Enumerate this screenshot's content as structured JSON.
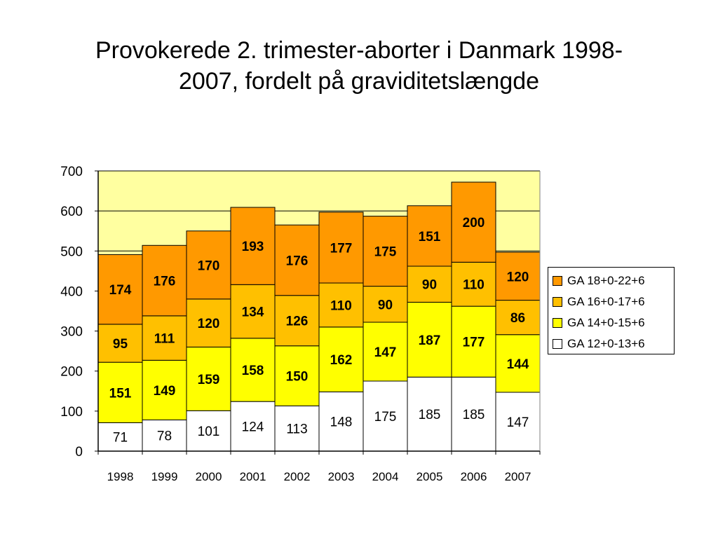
{
  "title_line1": "Provokerede 2. trimester-aborter i Danmark 1998-",
  "title_line2": "2007, fordelt på graviditetslængde",
  "colors": {
    "plot_bg": "#FFFFA0",
    "ga12": "#FFFFFF",
    "ga14": "#FFFF00",
    "ga16": "#FFC000",
    "ga18": "#FF9900"
  },
  "chart_data": {
    "type": "bar",
    "stacked": true,
    "categories": [
      "1998",
      "1999",
      "2000",
      "2001",
      "2002",
      "2003",
      "2004",
      "2005",
      "2006",
      "2007"
    ],
    "series": [
      {
        "name": "GA 12+0-13+6",
        "values": [
          71,
          78,
          101,
          124,
          113,
          148,
          175,
          185,
          185,
          147
        ]
      },
      {
        "name": "GA 14+0-15+6",
        "values": [
          151,
          149,
          159,
          158,
          150,
          162,
          147,
          187,
          177,
          144
        ]
      },
      {
        "name": "GA 16+0-17+6",
        "values": [
          95,
          111,
          120,
          134,
          126,
          110,
          90,
          90,
          110,
          86
        ]
      },
      {
        "name": "GA 18+0-22+6",
        "values": [
          174,
          176,
          170,
          193,
          176,
          177,
          175,
          151,
          200,
          120
        ]
      }
    ],
    "ylim": [
      0,
      700
    ],
    "yticks": [
      0,
      100,
      200,
      300,
      400,
      500,
      600,
      700
    ],
    "grid": true,
    "legend_position": "right"
  },
  "legend": {
    "items": [
      {
        "label": "GA 18+0-22+6",
        "color": "#FF9900"
      },
      {
        "label": "GA 16+0-17+6",
        "color": "#FFC000"
      },
      {
        "label": "GA 14+0-15+6",
        "color": "#FFFF00"
      },
      {
        "label": "GA 12+0-13+6",
        "color": "#FFFFFF"
      }
    ]
  }
}
